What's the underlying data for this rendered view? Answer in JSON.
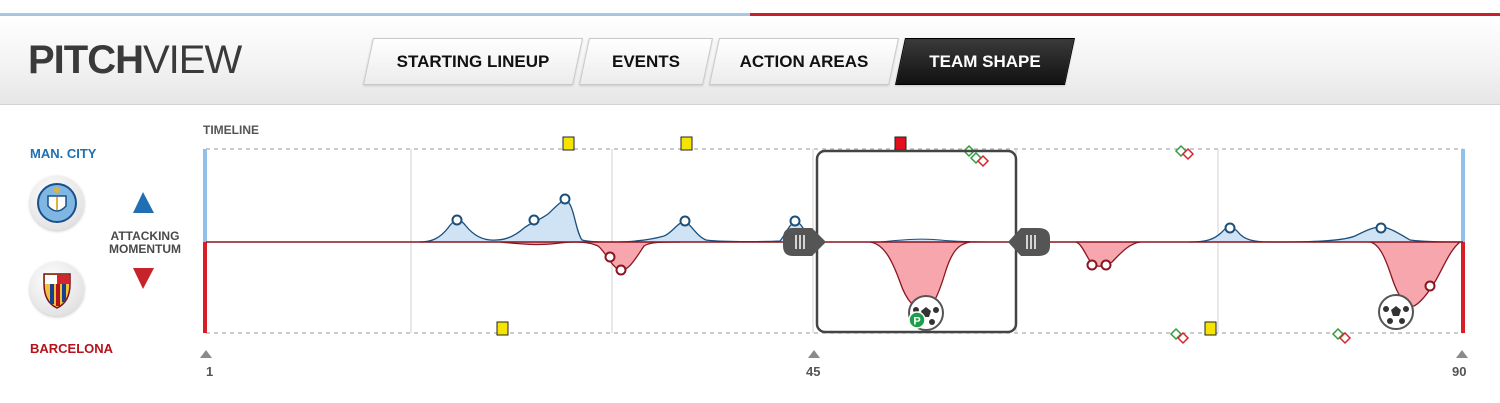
{
  "app": {
    "logo_bold": "PITCH",
    "logo_light": "VIEW"
  },
  "tabs": [
    {
      "label": "STARTING LINEUP",
      "active": false
    },
    {
      "label": "EVENTS",
      "active": false
    },
    {
      "label": "ACTION AREAS",
      "active": false
    },
    {
      "label": "TEAM SHAPE",
      "active": true
    }
  ],
  "timeline": {
    "label": "TIMELINE",
    "momentum_label_line1": "ATTACKING",
    "momentum_label_line2": "MOMENTUM",
    "ticks": [
      "1",
      "45",
      "90"
    ],
    "home_team": {
      "name": "MAN. CITY",
      "color": "#1f6fb2",
      "crest_icon": "man-city-crest-icon"
    },
    "away_team": {
      "name": "BARCELONA",
      "color": "#b5121b",
      "crest_icon": "barcelona-crest-icon"
    },
    "selection_minutes": [
      45,
      65
    ],
    "home_momentum_peaks_minutes": [
      23,
      28,
      33,
      39,
      46,
      64,
      79,
      86
    ],
    "away_momentum_peaks_minutes": [
      34,
      35,
      58,
      59,
      87
    ],
    "home_cards": [
      {
        "type": "yellow",
        "minute": 33
      },
      {
        "type": "yellow",
        "minute": 40
      },
      {
        "type": "red",
        "minute": 50
      }
    ],
    "away_cards": [
      {
        "type": "yellow",
        "minute": 26
      },
      {
        "type": "yellow",
        "minute": 67
      }
    ],
    "home_subs_minutes": [
      55,
      66
    ],
    "away_subs_minutes": [
      66,
      77
    ],
    "goals": [
      {
        "team": "away",
        "minute": 50,
        "penalty": true,
        "badge": "P"
      },
      {
        "team": "away",
        "minute": 86,
        "penalty": false
      }
    ]
  }
}
